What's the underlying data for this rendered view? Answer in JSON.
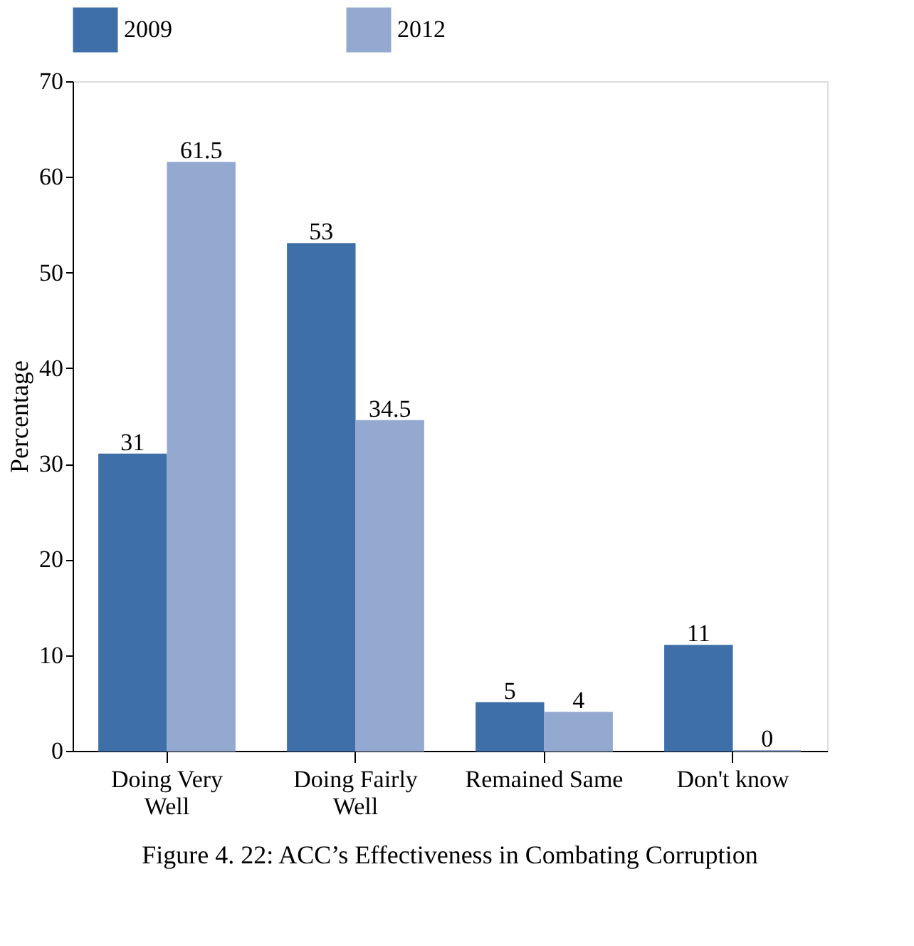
{
  "chart_data": {
    "type": "bar",
    "title": "Figure 4. 22: ACC’s Effectiveness in Combating Corruption",
    "ylabel": "Percentage",
    "categories": [
      "Doing Very Well",
      "Doing Fairly Well",
      "Remained Same",
      "Don't know"
    ],
    "series": [
      {
        "name": "2009",
        "color": "#3f6fa8",
        "values": [
          31,
          53,
          5,
          11
        ]
      },
      {
        "name": "2012",
        "color": "#94a9d0",
        "values": [
          61.5,
          34.5,
          4,
          0
        ]
      }
    ],
    "ylim": [
      0,
      70
    ],
    "yticks": [
      0,
      10,
      20,
      30,
      40,
      50,
      60,
      70
    ],
    "grid": false,
    "legend": "top",
    "data_labels": true
  }
}
